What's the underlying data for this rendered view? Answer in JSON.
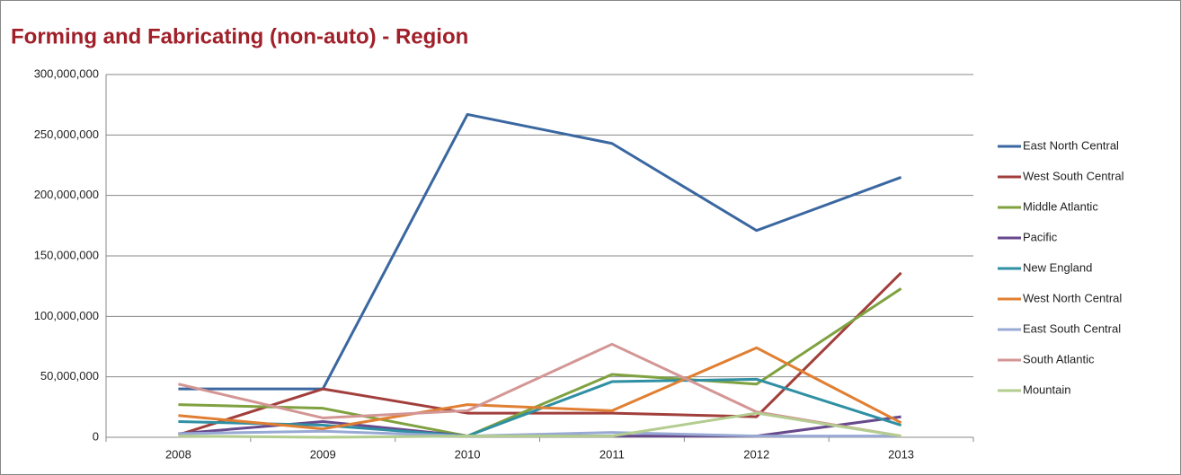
{
  "chart_data": {
    "type": "line",
    "title": "Forming and Fabricating (non-auto) - Region",
    "categories": [
      "2008",
      "2009",
      "2010",
      "2011",
      "2012",
      "2013"
    ],
    "series": [
      {
        "name": "East North Central",
        "color": "#3a67a0",
        "values": [
          40000000,
          40000000,
          267000000,
          243000000,
          171000000,
          215000000
        ]
      },
      {
        "name": "West South Central",
        "color": "#a13f3c",
        "values": [
          2000000,
          40000000,
          20000000,
          20000000,
          17000000,
          136000000
        ]
      },
      {
        "name": "Middle Atlantic",
        "color": "#7fa13f",
        "values": [
          27000000,
          24000000,
          1000000,
          52000000,
          44000000,
          123000000
        ]
      },
      {
        "name": "Pacific",
        "color": "#67498c",
        "values": [
          3000000,
          13000000,
          1000000,
          1000000,
          1000000,
          17000000
        ]
      },
      {
        "name": "New England",
        "color": "#2f8fa3",
        "values": [
          13000000,
          10000000,
          1000000,
          46000000,
          48000000,
          10000000
        ]
      },
      {
        "name": "West North Central",
        "color": "#e07f32",
        "values": [
          18000000,
          7000000,
          27000000,
          22000000,
          74000000,
          12000000
        ]
      },
      {
        "name": "East South Central",
        "color": "#98a9d3",
        "values": [
          3000000,
          5000000,
          1000000,
          4000000,
          1000000,
          1000000
        ]
      },
      {
        "name": "South Atlantic",
        "color": "#d39694",
        "values": [
          44000000,
          16000000,
          22000000,
          77000000,
          21000000,
          1000000
        ]
      },
      {
        "name": "Mountain",
        "color": "#b3cc8f",
        "values": [
          1000000,
          0,
          1000000,
          1000000,
          20000000,
          1000000
        ]
      }
    ],
    "ylim": [
      0,
      300000000
    ],
    "yticks": [
      {
        "value": 0,
        "label": "0"
      },
      {
        "value": 50000000,
        "label": "50,000,000"
      },
      {
        "value": 100000000,
        "label": "100,000,000"
      },
      {
        "value": 150000000,
        "label": "150,000,000"
      },
      {
        "value": 200000000,
        "label": "200,000,000"
      },
      {
        "value": 250000000,
        "label": "250,000,000"
      },
      {
        "value": 300000000,
        "label": "300,000,000"
      }
    ],
    "grid": true,
    "legend": "right"
  }
}
